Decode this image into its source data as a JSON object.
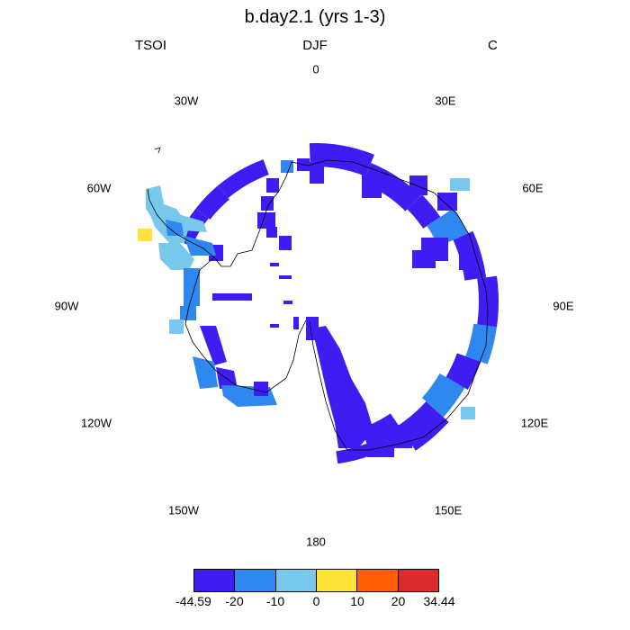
{
  "title": "b.day2.1 (yrs 1-3)",
  "subtitle": {
    "left": "TSOI",
    "center": "DJF",
    "right": "C"
  },
  "longitude_labels": [
    "0",
    "30E",
    "60E",
    "90E",
    "120E",
    "150E",
    "180",
    "150W",
    "120W",
    "90W",
    "60W",
    "30W"
  ],
  "colorbar": {
    "colors": [
      "#3f1cf2",
      "#2f87f0",
      "#78c8ee",
      "#ffe23a",
      "#ff5e05",
      "#db2b2a"
    ],
    "labels": [
      "-44.59",
      "-20",
      "-10",
      "0",
      "10",
      "20",
      "34.44"
    ]
  },
  "map_colors": {
    "dark": "#3f1cf2",
    "mid": "#2f87f0",
    "light": "#78c8ee",
    "warm": "#ffe23a",
    "coast": "#000000"
  }
}
